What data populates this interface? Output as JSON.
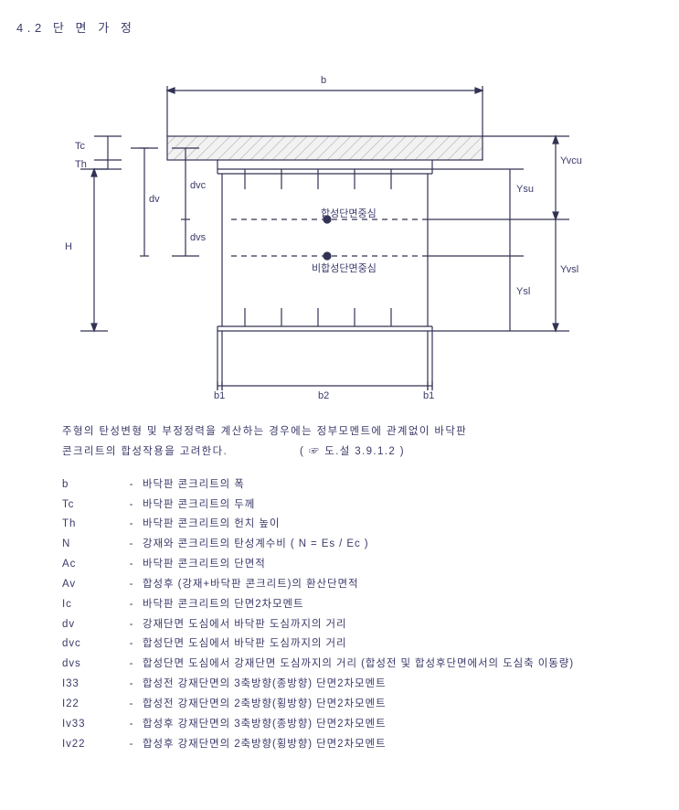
{
  "section_title": "4.2 단 면 가 정",
  "diagram": {
    "labels": {
      "b_top": "b",
      "Tc": "Tc",
      "Th": "Th",
      "dv": "dv",
      "dvc": "dvc",
      "dvs": "dvs",
      "H": "H",
      "b1_left": "b1",
      "b2": "b2",
      "b1_right": "b1",
      "Yvcu": "Yvcu",
      "Ysu": "Ysu",
      "Ysl": "Ysl",
      "Yvsl": "Yvsl",
      "centroid_comp": "합성단면중심",
      "centroid_noncomp": "비합성단면중심"
    },
    "colors": {
      "line": "#333355",
      "hatch": "#999999",
      "text": "#3a3a6a",
      "background": "#ffffff"
    },
    "stroke_width": 1.2
  },
  "note": {
    "line1": "주형의 탄성변형 및 부정정력을 계산하는 경우에는 정부모멘트에 관계없이 바닥판",
    "line2_left": "콘크리트의 합성작용을 고려한다.",
    "line2_right": "( ☞ 도.설 3.9.1.2 )"
  },
  "legend": [
    {
      "sym": "b",
      "desc": "바닥판 콘크리트의 폭"
    },
    {
      "sym": "Tc",
      "desc": "바닥판 콘크리트의 두께"
    },
    {
      "sym": "Th",
      "desc": "바닥판 콘크리트의 헌치 높이"
    },
    {
      "sym": "N",
      "desc": "강재와 콘크리트의 탄성계수비 ( N = Es / Ec )"
    },
    {
      "sym": "Ac",
      "desc": "바닥판 콘크리트의 단면적"
    },
    {
      "sym": "Av",
      "desc": "합성후   (강재+바닥판 콘크리트)의 환산단면적"
    },
    {
      "sym": "Ic",
      "desc": "바닥판 콘크리트의 단면2차모멘트"
    },
    {
      "sym": "dv",
      "desc": "강재단면 도심에서 바닥판 도심까지의 거리"
    },
    {
      "sym": "dvc",
      "desc": "합성단면 도심에서 바닥판 도심까지의 거리"
    },
    {
      "sym": "dvs",
      "desc": "합성단면 도심에서 강재단면 도심까지의 거리 (합성전 및 합성후단면에서의 도심축 이동량)"
    },
    {
      "sym": "I33",
      "desc": "합성전 강재단면의 3축방향(종방향) 단면2차모멘트"
    },
    {
      "sym": "I22",
      "desc": "합성전 강재단면의 2축방향(횡방향) 단면2차모멘트"
    },
    {
      "sym": "Iv33",
      "desc": "합성후 강재단면의 3축방향(종방향) 단면2차모멘트"
    },
    {
      "sym": "Iv22",
      "desc": "합성후 강재단면의 2축방향(횡방향) 단면2차모멘트"
    }
  ]
}
